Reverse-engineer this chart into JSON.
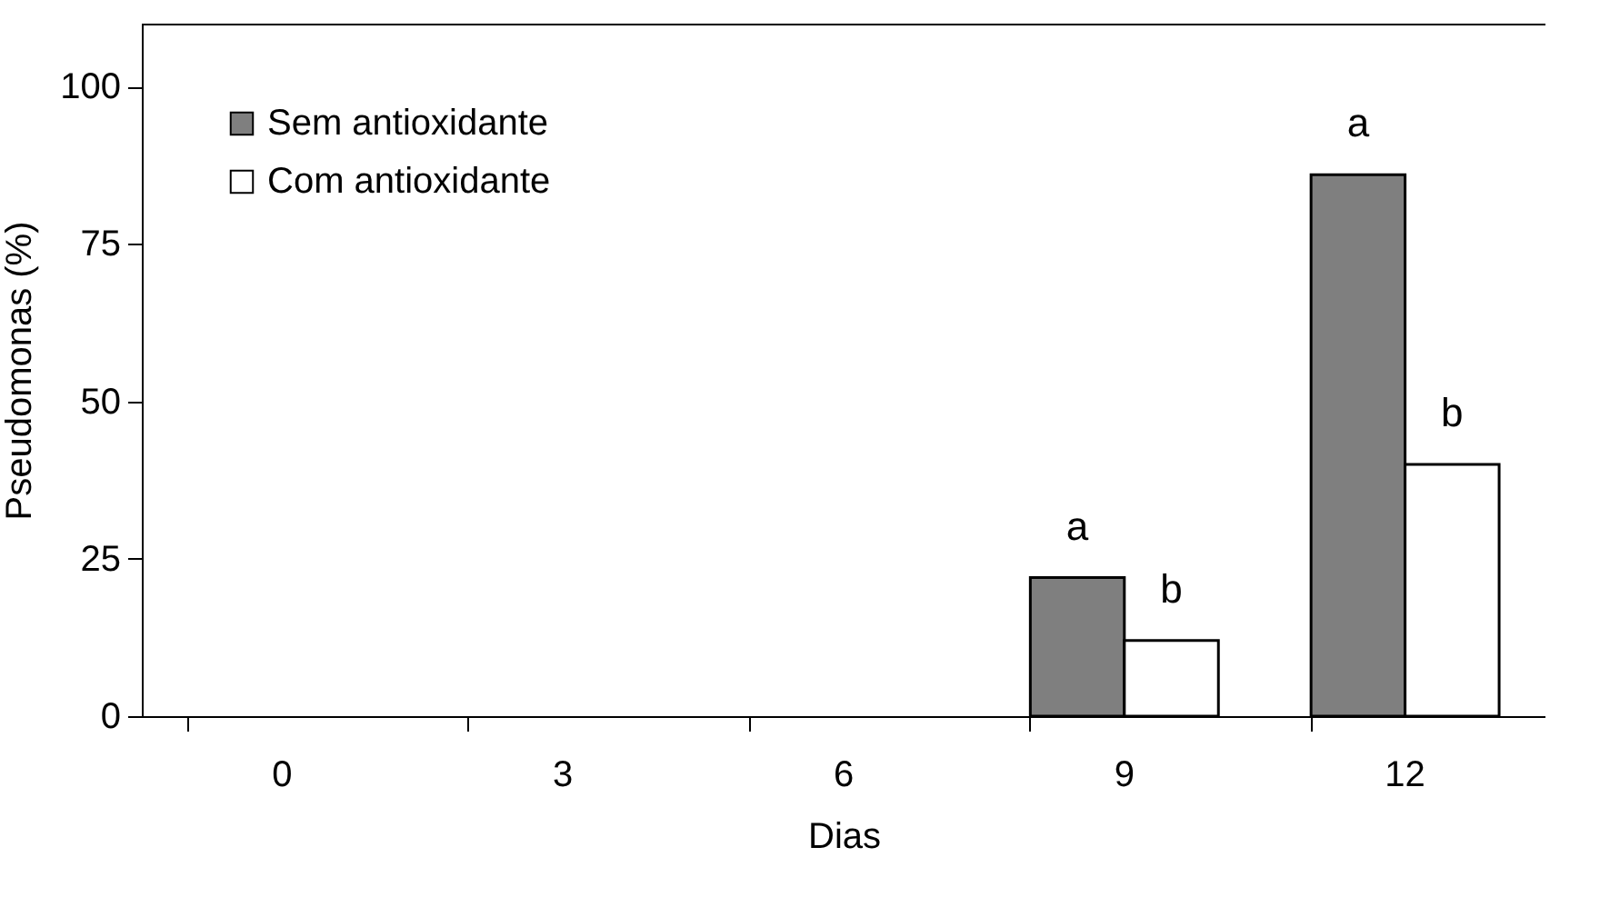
{
  "chart_data": {
    "type": "bar",
    "xlabel": "Dias",
    "ylabel": "Pseudomonas (%)",
    "categories": [
      "0",
      "3",
      "6",
      "9",
      "12"
    ],
    "series": [
      {
        "name": "Sem antioxidante",
        "color": "#7f7f7f",
        "values": [
          0,
          0,
          0,
          22,
          86
        ]
      },
      {
        "name": "Com antioxidante",
        "color": "#ffffff",
        "values": [
          0,
          0,
          0,
          12,
          40
        ]
      }
    ],
    "ylim": [
      0,
      110
    ],
    "yticks": [
      0,
      25,
      50,
      75,
      100
    ],
    "grid": false,
    "legend": "top left",
    "annotations": [
      {
        "text": "a",
        "x": "9",
        "y": 22
      },
      {
        "text": "b",
        "x": "9",
        "y": 12
      },
      {
        "text": "a",
        "x": "12",
        "y": 86
      },
      {
        "text": "b",
        "x": "12",
        "y": 40
      }
    ]
  }
}
